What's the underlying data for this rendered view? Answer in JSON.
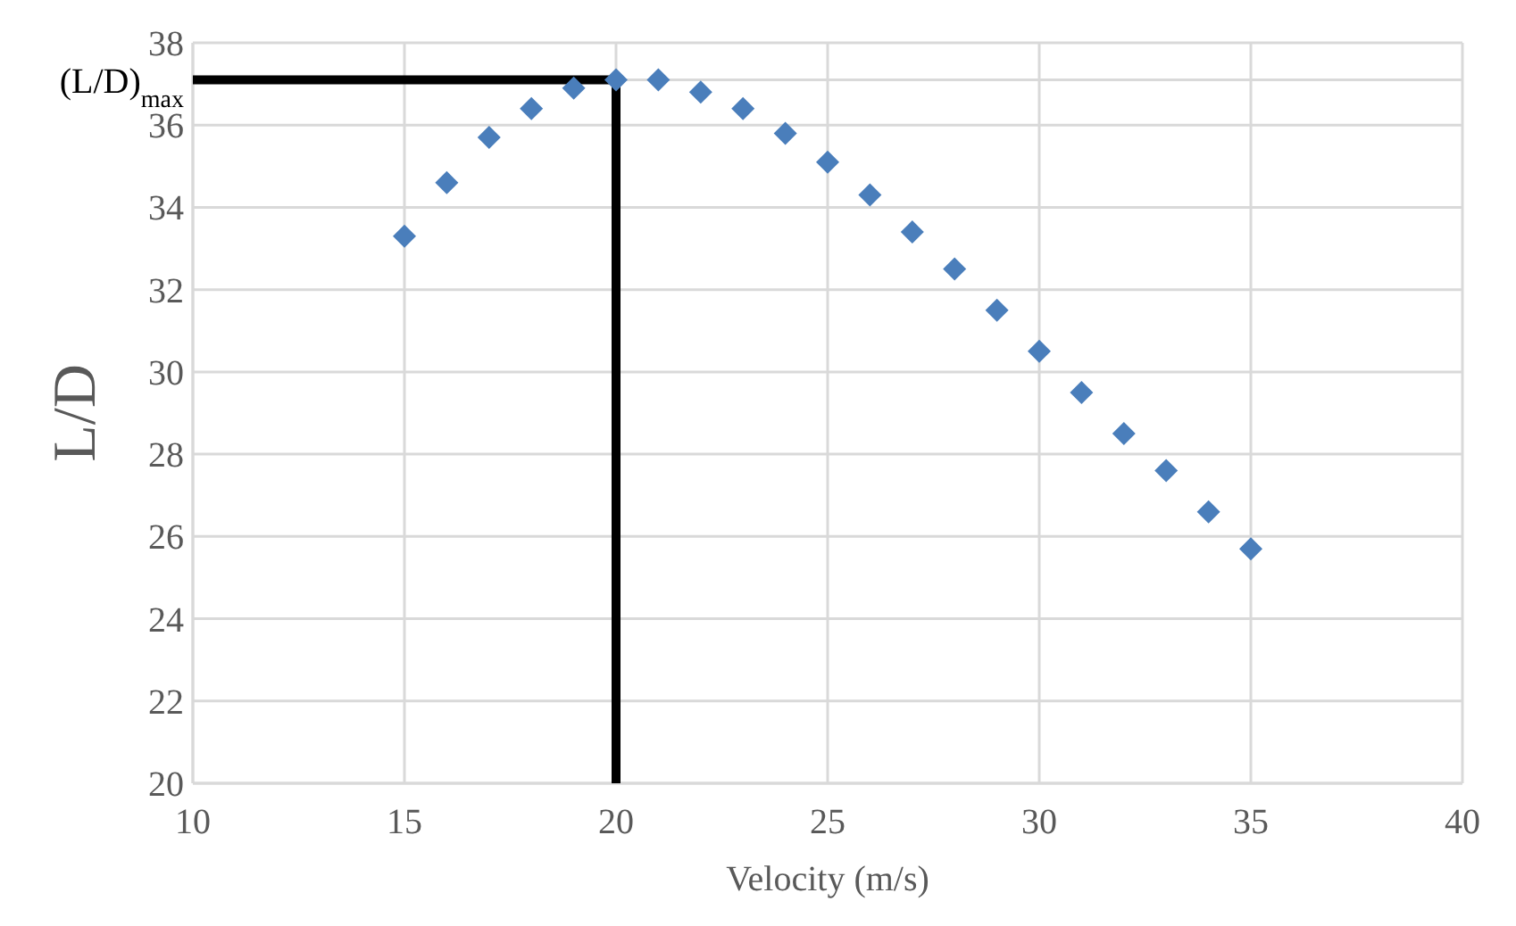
{
  "chart_data": {
    "type": "scatter",
    "xlabel": "Velocity (m/s)",
    "ylabel": "L/D",
    "xlim": [
      10,
      40
    ],
    "xticks": [
      10,
      15,
      20,
      25,
      30,
      35,
      40
    ],
    "ylim": [
      20,
      38
    ],
    "yticks": [
      20,
      22,
      24,
      26,
      28,
      30,
      32,
      34,
      36,
      {
        "value": 37.1,
        "label": "(L/D)$_{max}$"
      },
      38
    ],
    "grid": true,
    "marker": "diamond",
    "series": [
      {
        "color": "#4a7ebb",
        "x": [
          15,
          16,
          17,
          18,
          19,
          20,
          21,
          22,
          23,
          24,
          25,
          26,
          27,
          28,
          29,
          30,
          31,
          32,
          33,
          34,
          35
        ],
        "values": [
          33.3,
          34.6,
          35.7,
          36.4,
          36.9,
          37.1,
          37.1,
          36.8,
          36.4,
          35.8,
          35.1,
          34.3,
          33.4,
          32.5,
          31.5,
          30.5,
          29.5,
          28.5,
          27.6,
          26.6,
          25.7
        ]
      },
      {
        "type": "line",
        "color": "#000000",
        "marker": "none",
        "x": [
          10,
          20,
          20
        ],
        "values": [
          37.1,
          37.1,
          20
        ]
      }
    ]
  }
}
